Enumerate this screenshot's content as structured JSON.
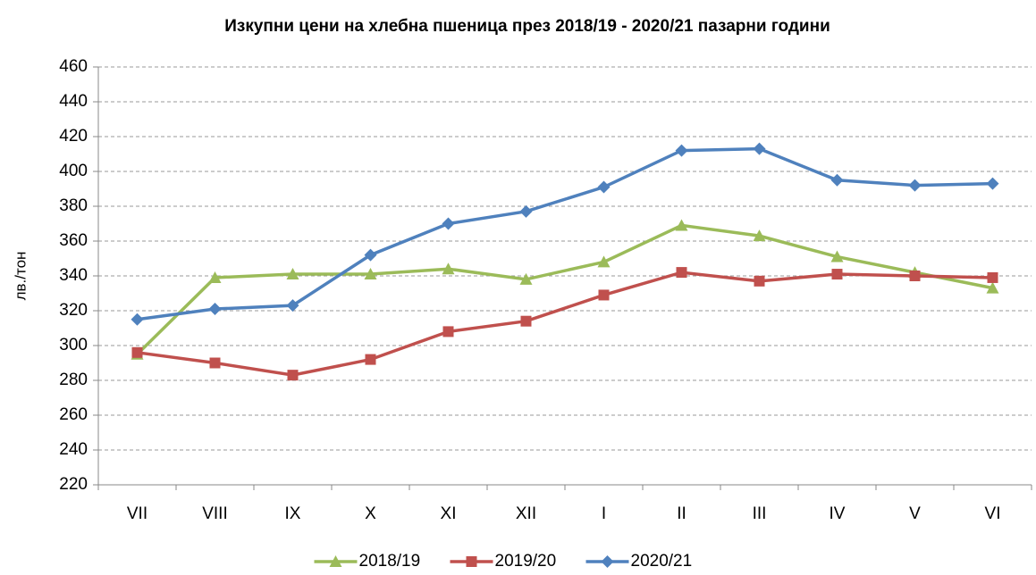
{
  "chart_data": {
    "type": "line",
    "title": "Изкупни цени на хлебна пшеница през 2018/19 - 2020/21 пазарни години",
    "y_label": "лв./тон",
    "categories": [
      "VII",
      "VIII",
      "IX",
      "X",
      "XI",
      "XII",
      "I",
      "II",
      "III",
      "IV",
      "V",
      "VI"
    ],
    "series": [
      {
        "name": "2018/19",
        "color": "#9bbb59",
        "marker": "triangle",
        "values": [
          295,
          339,
          341,
          341,
          344,
          338,
          348,
          369,
          363,
          351,
          342,
          333
        ]
      },
      {
        "name": "2019/20",
        "color": "#c0504d",
        "marker": "square",
        "values": [
          296,
          290,
          283,
          292,
          308,
          314,
          329,
          342,
          337,
          341,
          340,
          339
        ]
      },
      {
        "name": "2020/21",
        "color": "#4f81bd",
        "marker": "diamond",
        "values": [
          315,
          321,
          323,
          352,
          370,
          377,
          391,
          412,
          413,
          395,
          392,
          393
        ]
      }
    ],
    "ylim": [
      220,
      460
    ],
    "yticks": [
      220,
      240,
      260,
      280,
      300,
      320,
      340,
      360,
      380,
      400,
      420,
      440,
      460
    ],
    "grid": true,
    "legend": "bottom"
  }
}
